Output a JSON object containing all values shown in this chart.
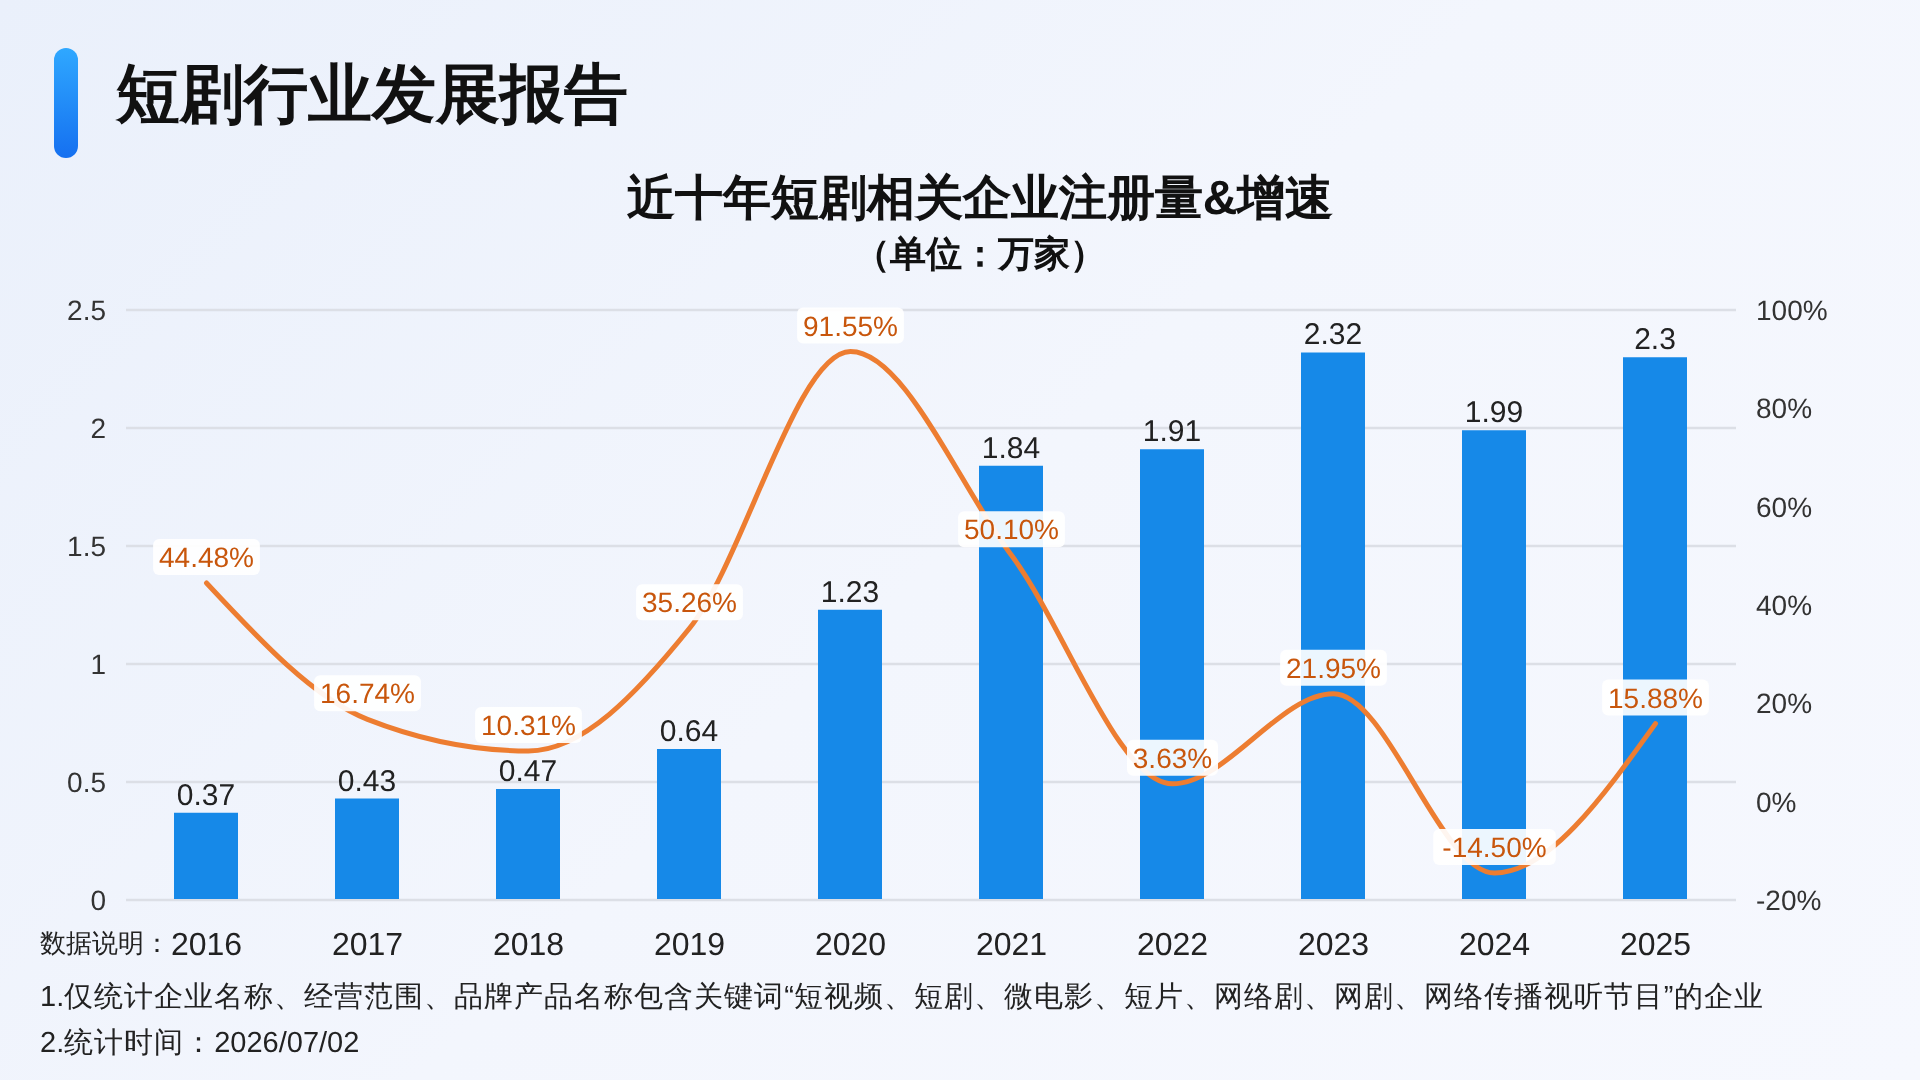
{
  "chart_data": {
    "type": "bar",
    "title": "近十年短剧相关企业注册量&增速",
    "subtitle": "（单位：万家）",
    "annotations": [
      "短剧行业发展报告",
      "数据说明：",
      "1.仅统计企业名称、经营范围、品牌产品名称包含关键词“短视频、短剧、微电影、短片、网络剧、网剧、网络传播视听节目”的企业",
      "2.统计时间：2026/07/02"
    ],
    "categories": [
      "2016",
      "2017",
      "2018",
      "2019",
      "2020",
      "2021",
      "2022",
      "2023",
      "2024",
      "2025"
    ],
    "series": [
      {
        "color": "#1689e8",
        "values": [
          0.37,
          0.43,
          0.47,
          0.64,
          1.23,
          1.84,
          1.91,
          2.32,
          1.99,
          2.3
        ]
      },
      {
        "type": "line",
        "axis": "y2",
        "color": "#ed7d31",
        "values": [
          44.48,
          16.74,
          10.31,
          35.26,
          91.55,
          50.1,
          3.63,
          21.95,
          -14.5,
          15.88
        ],
        "value_labels": [
          "44.48%",
          "16.74%",
          "10.31%",
          "35.26%",
          "91.55%",
          "50.10%",
          "3.63%",
          "21.95%",
          "-14.50%",
          "15.88%"
        ]
      }
    ],
    "ylim": [
      0,
      2.5
    ],
    "yticks": [
      0,
      0.5,
      1,
      1.5,
      2,
      2.5
    ],
    "y2lim": [
      -20,
      100
    ],
    "y2ticks": [
      {
        "value": -20,
        "label": "-20%"
      },
      {
        "value": 0,
        "label": "0%"
      },
      {
        "value": 20,
        "label": "20%"
      },
      {
        "value": 40,
        "label": "40%"
      },
      {
        "value": 60,
        "label": "60%"
      },
      {
        "value": 80,
        "label": "80%"
      },
      {
        "value": 100,
        "label": "100%"
      }
    ],
    "grid": "y",
    "data_labels": true,
    "marker": "none",
    "line_style": "solid"
  }
}
